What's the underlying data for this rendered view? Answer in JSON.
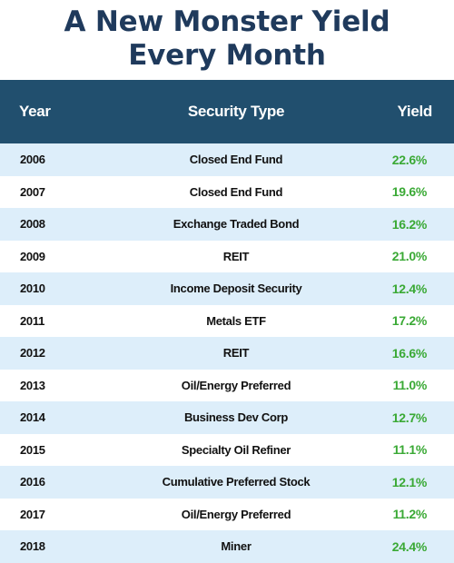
{
  "title_lines": [
    "A New Monster Yield",
    "Every Month"
  ],
  "colors": {
    "title": "#1f3a5c",
    "header_bg": "#214f6e",
    "row_alt_bg": "#ddeefa",
    "yield_text": "#3aa935"
  },
  "chart_data": {
    "type": "table",
    "title": "A New Monster Yield Every Month",
    "columns": [
      "Year",
      "Security Type",
      "Yield"
    ],
    "rows": [
      {
        "year": "2006",
        "security_type": "Closed End Fund",
        "yield": "22.6%"
      },
      {
        "year": "2007",
        "security_type": "Closed End Fund",
        "yield": "19.6%"
      },
      {
        "year": "2008",
        "security_type": "Exchange Traded Bond",
        "yield": "16.2%"
      },
      {
        "year": "2009",
        "security_type": "REIT",
        "yield": "21.0%"
      },
      {
        "year": "2010",
        "security_type": "Income Deposit Security",
        "yield": "12.4%"
      },
      {
        "year": "2011",
        "security_type": "Metals ETF",
        "yield": "17.2%"
      },
      {
        "year": "2012",
        "security_type": "REIT",
        "yield": "16.6%"
      },
      {
        "year": "2013",
        "security_type": "Oil/Energy Preferred",
        "yield": "11.0%"
      },
      {
        "year": "2014",
        "security_type": "Business Dev Corp",
        "yield": "12.7%"
      },
      {
        "year": "2015",
        "security_type": "Specialty Oil Refiner",
        "yield": "11.1%"
      },
      {
        "year": "2016",
        "security_type": "Cumulative Preferred Stock",
        "yield": "12.1%"
      },
      {
        "year": "2017",
        "security_type": "Oil/Energy Preferred",
        "yield": "11.2%"
      },
      {
        "year": "2018",
        "security_type": "Miner",
        "yield": "24.4%"
      }
    ]
  }
}
